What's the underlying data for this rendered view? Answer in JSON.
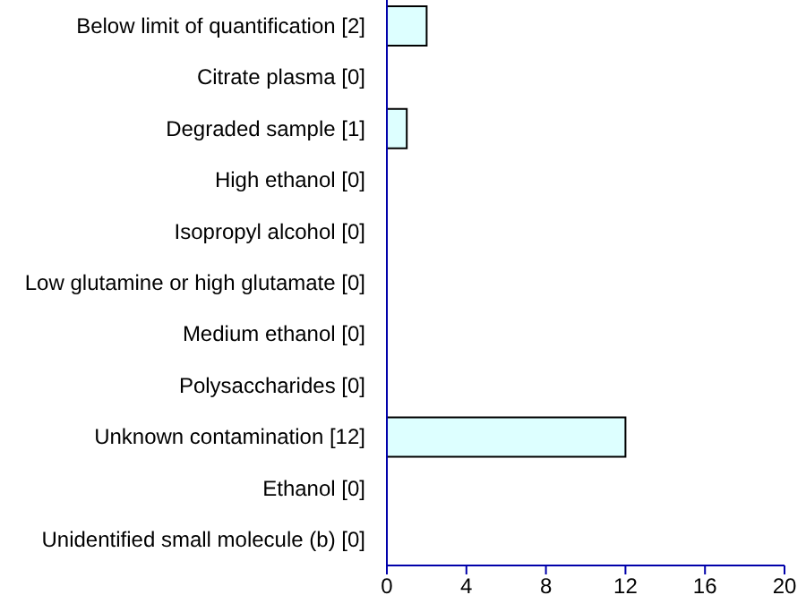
{
  "chart_data": {
    "type": "bar",
    "orientation": "horizontal",
    "categories": [
      "Below limit of quantification [2]",
      "Citrate plasma [0]",
      "Degraded sample [1]",
      "High ethanol [0]",
      "Isopropyl alcohol [0]",
      "Low glutamine or high glutamate [0]",
      "Medium ethanol [0]",
      "Polysaccharides [0]",
      "Unknown contamination [12]",
      "Ethanol [0]",
      "Unidentified small molecule (b) [0]"
    ],
    "values": [
      2,
      0,
      1,
      0,
      0,
      0,
      0,
      0,
      12,
      0,
      0
    ],
    "color": "#ddffff",
    "xlim": [
      0,
      20
    ],
    "xticks": [
      0,
      4,
      8,
      12,
      16,
      20
    ],
    "grid": false
  }
}
